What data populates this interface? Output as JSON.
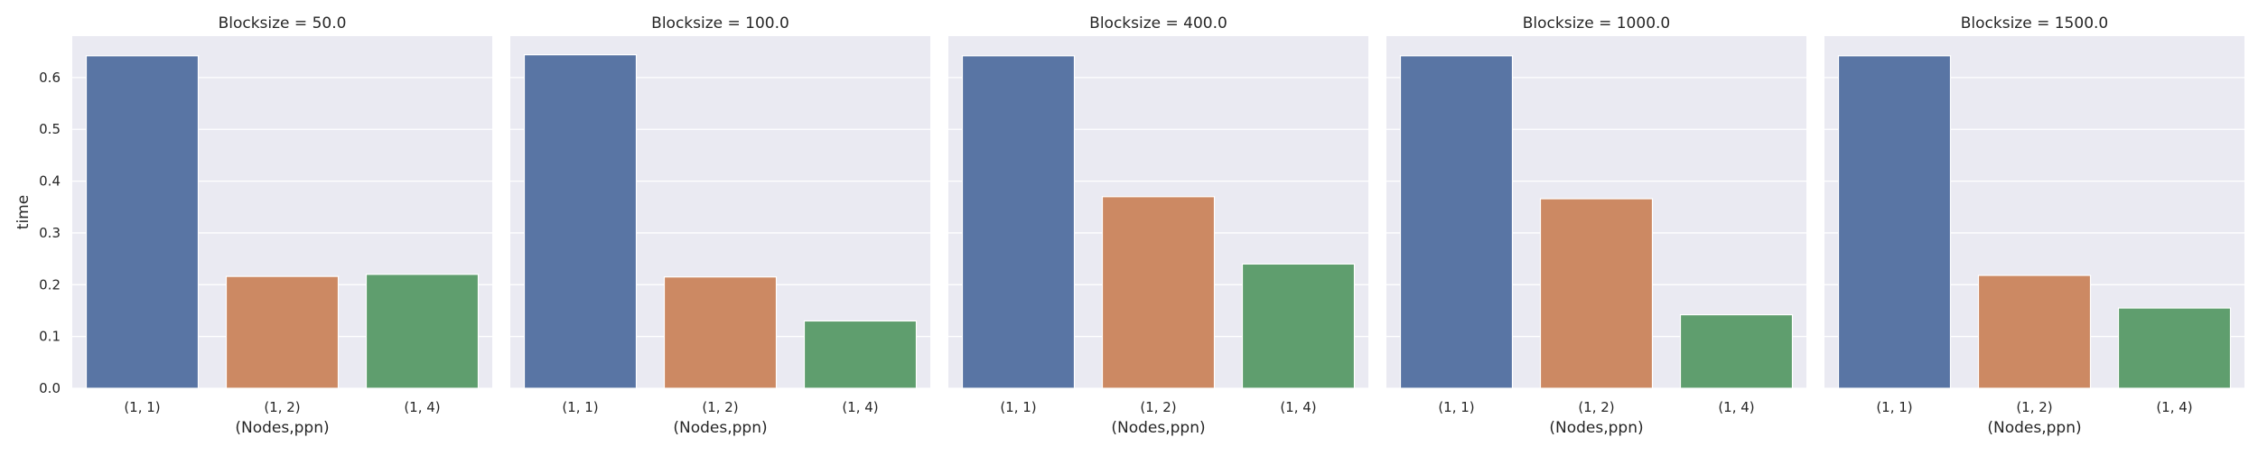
{
  "chart_data": {
    "type": "bar",
    "facet_variable": "Blocksize",
    "xlabel": "(Nodes,ppn)",
    "ylabel": "time",
    "ylim": [
      0,
      0.68
    ],
    "yticks": [
      0.0,
      0.1,
      0.2,
      0.3,
      0.4,
      0.5,
      0.6
    ],
    "ytick_labels": [
      "0.0",
      "0.1",
      "0.2",
      "0.3",
      "0.4",
      "0.5",
      "0.6"
    ],
    "categories": [
      "(1, 1)",
      "(1, 2)",
      "(1, 4)"
    ],
    "colors": [
      "#5975a4",
      "#cc8963",
      "#5f9e6e"
    ],
    "background": "#eaeaf2",
    "grid": true,
    "panels": [
      {
        "title": "Blocksize = 50.0",
        "values": [
          0.642,
          0.216,
          0.22
        ]
      },
      {
        "title": "Blocksize = 100.0",
        "values": [
          0.644,
          0.215,
          0.13
        ]
      },
      {
        "title": "Blocksize = 400.0",
        "values": [
          0.642,
          0.37,
          0.24
        ]
      },
      {
        "title": "Blocksize = 1000.0",
        "values": [
          0.642,
          0.366,
          0.142
        ]
      },
      {
        "title": "Blocksize = 1500.0",
        "values": [
          0.642,
          0.218,
          0.155
        ]
      }
    ]
  }
}
